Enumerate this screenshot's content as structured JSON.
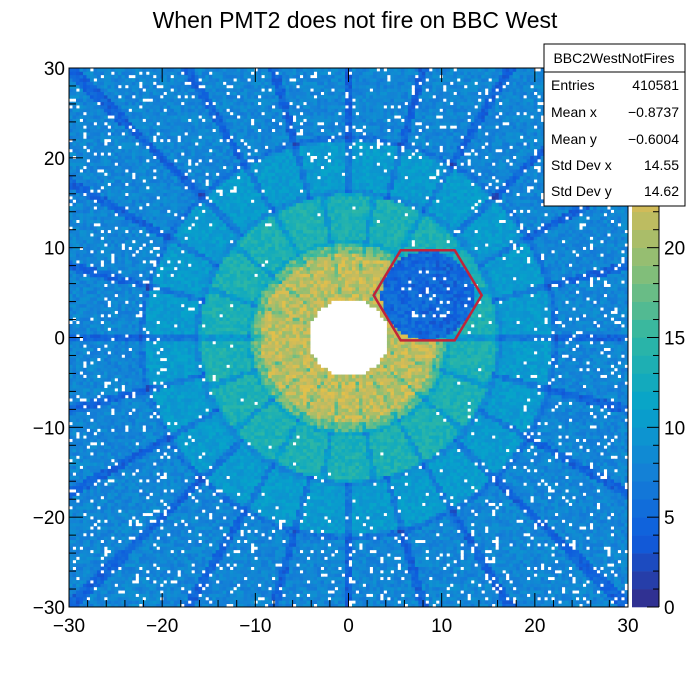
{
  "chart_data": {
    "type": "heatmap",
    "title": "When PMT2 does not fire on BBC West",
    "xlabel": "",
    "ylabel": "",
    "xlim": [
      -30,
      30
    ],
    "ylim": [
      -30,
      30
    ],
    "zlim": [
      0,
      30
    ],
    "x_ticks": [
      -30,
      -20,
      -10,
      0,
      10,
      20,
      30
    ],
    "y_ticks": [
      -30,
      -20,
      -10,
      0,
      10,
      20,
      30
    ],
    "x_tick_labels": [
      "−30",
      "−20",
      "−10",
      "0",
      "10",
      "20",
      "30"
    ],
    "y_tick_labels": [
      "−30",
      "−20",
      "−10",
      "0",
      "10",
      "20",
      "30"
    ],
    "z_ticks": [
      0,
      5,
      10,
      15,
      20,
      25
    ],
    "z_tick_labels": [
      "0",
      "5",
      "10",
      "15",
      "20",
      "25"
    ],
    "colorscale": [
      "#352a87",
      "#0f5cdd",
      "#1481d6",
      "#06a4ca",
      "#2eb7a4",
      "#87bf77",
      "#d1bb59",
      "#fec832",
      "#f9fb0e"
    ],
    "stats_box": {
      "name": "BBC2WestNotFires",
      "rows": [
        {
          "label": "Entries",
          "value": "410581"
        },
        {
          "label": "Mean x",
          "value": "−0.8737"
        },
        {
          "label": "Mean y",
          "value": "−0.6004"
        },
        {
          "label": "Std Dev x",
          "value": "14.55"
        },
        {
          "label": "Std Dev y",
          "value": "14.62"
        }
      ]
    },
    "overlay": {
      "shape": "hexagon",
      "color": "#c0243a",
      "center": [
        8.5,
        4.7
      ],
      "radius": 5.8
    },
    "hole": {
      "center": [
        0,
        0
      ],
      "radius": 4.3
    }
  }
}
